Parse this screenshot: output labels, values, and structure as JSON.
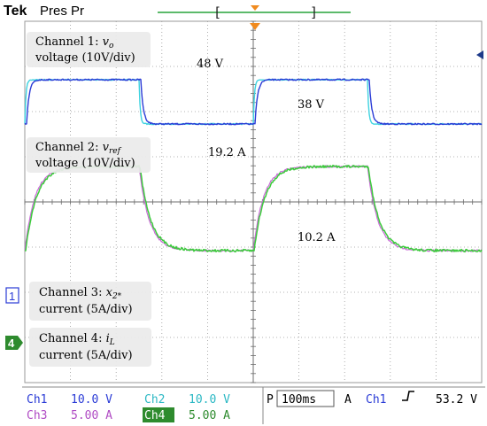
{
  "header": {
    "brand": "Tek",
    "mode": "Pres Pr",
    "bracket_left": "[",
    "bracket_right": "]"
  },
  "annotations": {
    "ch1": {
      "line1": "Channel 1:",
      "symbol": "v",
      "sub": "o",
      "line2": "voltage (10V/div)"
    },
    "ch2": {
      "line1": "Channel 2:",
      "symbol": "v",
      "sub": "ref",
      "line2": "voltage (10V/div)"
    },
    "ch3": {
      "line1": "Channel 3:",
      "symbol": "x",
      "sub": "2*",
      "line2": "current (5A/div)"
    },
    "ch4": {
      "line1": "Channel 4:",
      "symbol": "i",
      "sub": "L",
      "line2": "current (5A/div)"
    }
  },
  "labels": {
    "v_high": "48 V",
    "v_low": "38 V",
    "i_high": "19.2 A",
    "i_low": "10.2 A"
  },
  "markers": {
    "ch1": "1",
    "ch4": "4"
  },
  "status_bar": {
    "ch1_label": "Ch1",
    "ch1_scale": "10.0 V",
    "ch2_label": "Ch2",
    "ch2_scale": "10.0 V",
    "ch3_label": "Ch3",
    "ch3_scale": "5.00 A",
    "ch4_label": "Ch4",
    "ch4_scale": "5.00 A",
    "p_label": "P",
    "timebase": "100ms",
    "a_label": "A",
    "trig_ch": "Ch1",
    "trig_level": "53.2 V"
  },
  "colors": {
    "ch1": "#2a3bd6",
    "ch2": "#3fd3e0",
    "ch3": "#c86ad6",
    "ch4": "#3ccc3c",
    "grid": "#9a9a9a",
    "label_box": "#ebebeb",
    "trigger": "#f08a1e"
  },
  "chart_data": {
    "type": "line",
    "title": "",
    "x_unit": "ms",
    "x_range": [
      0,
      1000
    ],
    "x_div": 100,
    "segments": [
      {
        "level": "high",
        "t_start": 0,
        "t_end": 250
      },
      {
        "level": "low",
        "t_start": 250,
        "t_end": 500
      },
      {
        "level": "high",
        "t_start": 500,
        "t_end": 750
      },
      {
        "level": "low",
        "t_start": 750,
        "t_end": 1000
      }
    ],
    "series": [
      {
        "name": "Channel 1",
        "quantity": "voltage",
        "unit": "V",
        "per_div": 10,
        "high": 48,
        "low": 38,
        "color": "#2a3bd6"
      },
      {
        "name": "Channel 2",
        "quantity": "voltage",
        "unit": "V",
        "per_div": 10,
        "high": 48,
        "low": 38,
        "color": "#3fd3e0"
      },
      {
        "name": "Channel 3",
        "quantity": "current",
        "unit": "A",
        "per_div": 5,
        "high": 19.2,
        "low": 10.2,
        "color": "#c86ad6"
      },
      {
        "name": "Channel 4",
        "quantity": "current",
        "unit": "A",
        "per_div": 5,
        "high": 19.2,
        "low": 10.2,
        "color": "#3ccc3c"
      }
    ]
  }
}
